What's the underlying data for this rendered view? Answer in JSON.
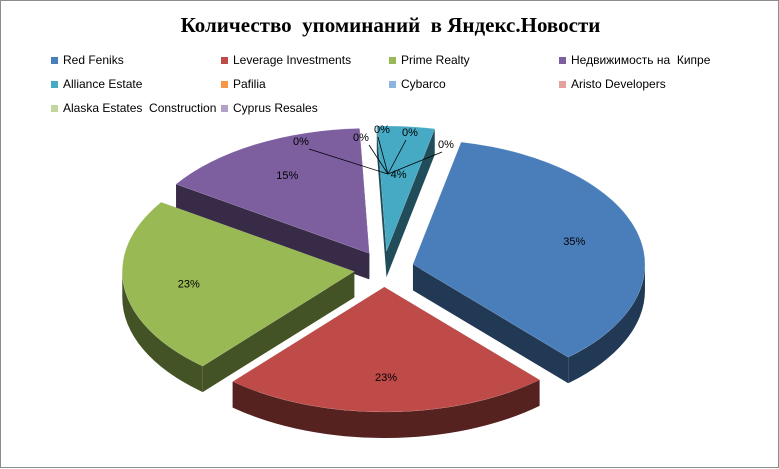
{
  "chart_data": {
    "type": "pie",
    "title": "Количество  упоминаний  в Яндекс.Новости",
    "categories": [
      "Red Feniks",
      "Leverage Investments",
      "Prime Realty",
      "Недвижимость на  Кипре",
      "Alliance Estate",
      "Pafilia",
      "Cybarco",
      "Aristo Developers",
      "Alaska Estates  Construction",
      "Cyprus Resales"
    ],
    "values": [
      35,
      23,
      23,
      15,
      4,
      0,
      0,
      0,
      0,
      0
    ],
    "labels": [
      "35%",
      "23%",
      "23%",
      "15%",
      "4%",
      "0%",
      "0%",
      "0%",
      "0%",
      "0%"
    ],
    "colors": [
      "#4a7ebb",
      "#be4b48",
      "#98b954",
      "#7d5fa0",
      "#46aac5",
      "#f79646",
      "#8db3e2",
      "#e6a09e",
      "#c3d69b",
      "#b3a2c7"
    ],
    "legend_position": "top",
    "exploded": true,
    "three_d": true
  }
}
